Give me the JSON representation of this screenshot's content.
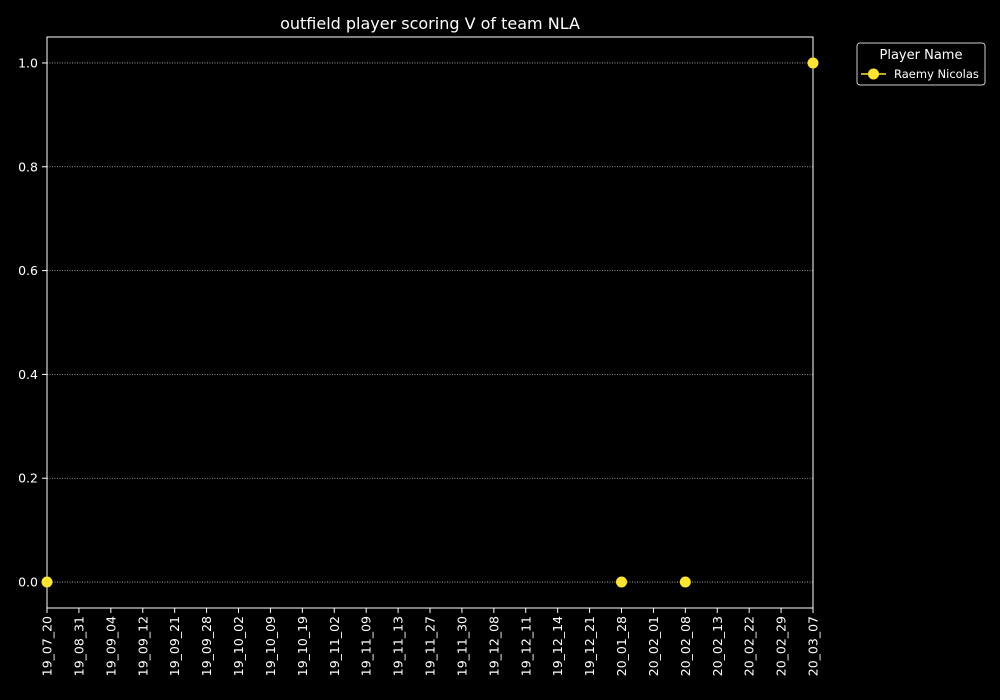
{
  "chart_data": {
    "type": "scatter",
    "title": "outfield player scoring V of team NLA",
    "xlabel": "",
    "ylabel": "",
    "categories": [
      "19_07_20",
      "19_08_31",
      "19_09_04",
      "19_09_12",
      "19_09_21",
      "19_09_28",
      "19_10_02",
      "19_10_09",
      "19_10_19",
      "19_11_02",
      "19_11_09",
      "19_11_13",
      "19_11_27",
      "19_11_30",
      "19_12_08",
      "19_12_11",
      "19_12_14",
      "19_12_21",
      "20_01_28",
      "20_02_01",
      "20_02_08",
      "20_02_13",
      "20_02_22",
      "20_02_29",
      "20_03_07"
    ],
    "ylim": [
      -0.05,
      1.05
    ],
    "yticks": [
      "0.0",
      "0.2",
      "0.4",
      "0.6",
      "0.8",
      "1.0"
    ],
    "grid": "horizontal dotted",
    "legend": {
      "title": "Player Name",
      "position": "outside-top-right",
      "entries": [
        "Raemy Nicolas"
      ]
    },
    "series": [
      {
        "name": "Raemy Nicolas",
        "color": "#ffe433",
        "points": [
          {
            "x": "19_07_20",
            "y": 0
          },
          {
            "x": "20_01_28",
            "y": 0
          },
          {
            "x": "20_02_08",
            "y": 0
          },
          {
            "x": "20_03_07",
            "y": 1
          }
        ]
      }
    ]
  },
  "colors": {
    "background": "#000000",
    "foreground": "#ffffff",
    "grid": "#bbbbbb"
  }
}
